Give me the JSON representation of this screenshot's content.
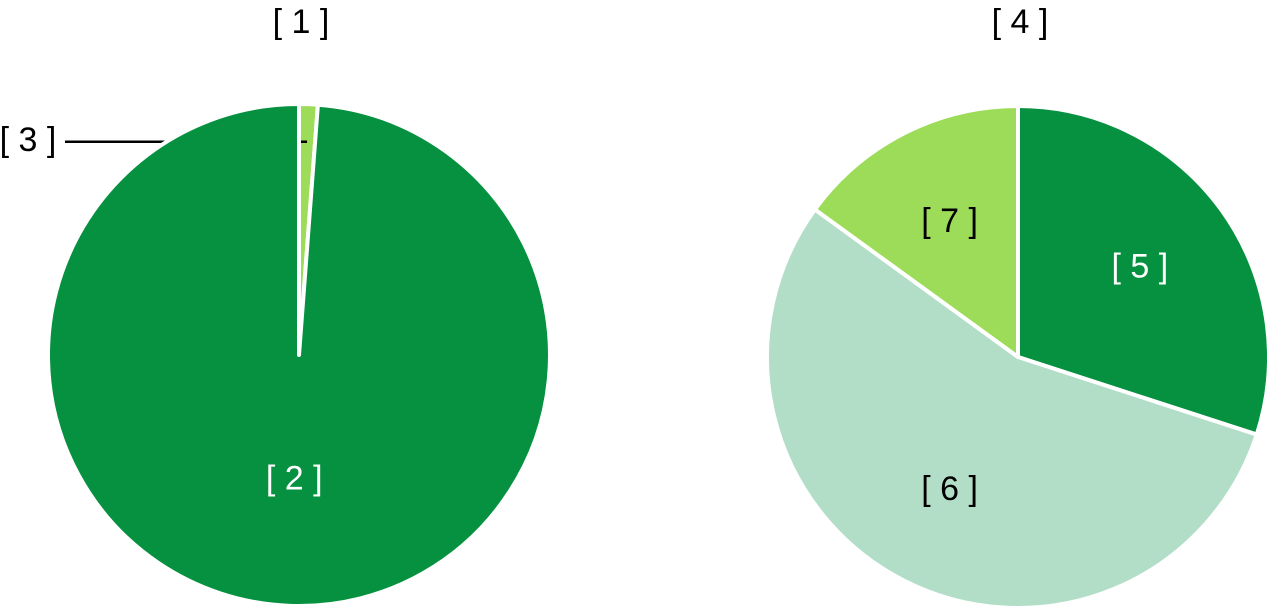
{
  "chart_data": [
    {
      "type": "pie",
      "title": "[ 1 ]",
      "categories": [
        "[ 3 ]",
        "[ 2 ]"
      ],
      "values": [
        1.2,
        98.8
      ],
      "colors": [
        "#9ddc59",
        "#05913f"
      ]
    },
    {
      "type": "pie",
      "title": "[ 4 ]",
      "categories": [
        "[ 5 ]",
        "[ 6 ]",
        "[ 7 ]"
      ],
      "values": [
        30,
        55,
        15
      ],
      "colors": [
        "#05913f",
        "#b2dec8",
        "#9ddc59"
      ]
    }
  ]
}
